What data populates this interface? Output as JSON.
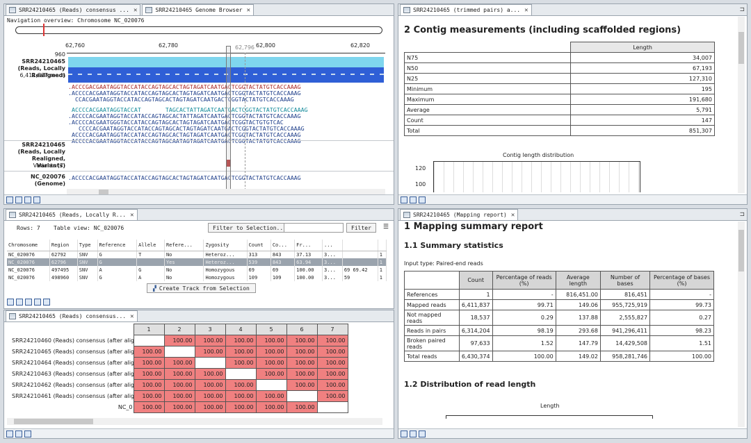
{
  "genome_browser": {
    "tabs": [
      {
        "label": "SRR24210465 (Reads) consensus ..."
      },
      {
        "label": "SRR24210465 Genome Browser"
      }
    ],
    "nav_label": "Navigation overview: Chromosome NC_020076",
    "ruler_ticks": [
      "62,760",
      "62,780",
      "62,800",
      "62,820"
    ],
    "cursor_position": "62,796",
    "tracks": [
      {
        "name": "SRR24210465 (Reads, Locally Realigned)",
        "max": "960",
        "reads": "6,411,837 reads"
      },
      {
        "name": "SRR24210465 (Reads, Locally Realigned, Variants)",
        "sub": "Variants (7)"
      },
      {
        "name": "NC_020076 (Genome)"
      }
    ],
    "read_lines": [
      ".ACCCGACGAATAGGTACCATACCAGTAGCACTAGTAGATCAATGACTCGGTACTATGTCACCAAAG",
      ".ACCCCACGAATAGGTACCATACCAGTAGCACTAGTAGATCAATGACTCGGTACTATGTCACCAAAG",
      "  CCACGAATAGGTACCATACCAGTAGCACTAGTAGATCAATGACTCGGTACTATGTCACCAAAG",
      "",
      " ACCCCACGAATAGGTACCAT       TAGCACTATTAGATCAATGACTCGGTACTATGTCACCAAAG",
      ".ACCCCACGAATAGGTACCATACCAGTAGCACTATTAGATCAATGACTCGGTACTATGTCACCAAAG",
      ".ACCCCACGAATGGGTACCATACCAGTAGCACTAGTAGATCAATGACTCGGTACTGTGTCAC",
      "   CCCCACGAATAGGTACCATACCAGTAGCACTAGTAGATCAATGACTCGGTACTATGTCACCAAAG",
      " ACCCCACGAATAGGTACCATACCAGTAGCACTAGTAGATCAATGACTCGGTACTATGTCACCAAAG",
      " ACCCCACGAATAGGTACCATACCAGTAGCAATAGTAGATCAATGACTCGGTACTATGTCACCAAAG"
    ],
    "genome_line": ".ACCCCACGAATAGGTACCATACCAGTAGCACTAGTAGATCAATGACTCGGTACTATGTCACCAAAG"
  },
  "trimmed_pairs": {
    "tab": "SRR24210465 (trimmed pairs) a...",
    "heading": "2 Contig measurements (including scaffolded regions)",
    "col_header": "Length",
    "rows": [
      {
        "label": "N75",
        "value": "34,007"
      },
      {
        "label": "N50",
        "value": "67,193"
      },
      {
        "label": "N25",
        "value": "127,310"
      },
      {
        "label": "Minimum",
        "value": "195"
      },
      {
        "label": "Maximum",
        "value": "191,680"
      },
      {
        "label": "Average",
        "value": "5,791"
      },
      {
        "label": "Count",
        "value": "147"
      },
      {
        "label": "Total",
        "value": "851,307"
      }
    ],
    "chart_title": "Contig length distribution",
    "y_ticks": [
      "120",
      "100"
    ]
  },
  "variant_table": {
    "tab": "SRR24210465 (Reads, Locally R...",
    "rows_label": "Rows: 7",
    "table_view_label": "Table view: NC_020076",
    "filter_to_selection": "Filter to Selection...",
    "filter_button": "Filter",
    "columns": [
      "Chromosome",
      "Region",
      "Type",
      "Reference",
      "Allele",
      "Refere...",
      "Zygosity",
      "Count",
      "Co...",
      "Fr...",
      "...",
      "",
      ""
    ],
    "rows": [
      [
        "NC_020076",
        "62792",
        "SNV",
        "G",
        "T",
        "No",
        "Heteroz...",
        "313",
        "843",
        "37.13",
        "3...",
        "",
        "1"
      ],
      [
        "NC_020076",
        "62796",
        "SNV",
        "G",
        "",
        "Yes",
        "Heteroz...",
        "539",
        "843",
        "63.94",
        "3...",
        "",
        "1"
      ],
      [
        "NC_020076",
        "497495",
        "SNV",
        "A",
        "G",
        "No",
        "Homozygous",
        "69",
        "69",
        "100.00",
        "3...",
        "69 69.42",
        "1"
      ],
      [
        "NC_020076",
        "498960",
        "SNV",
        "G",
        "A",
        "No",
        "Homozygous",
        "109",
        "109",
        "100.00",
        "3...",
        "59",
        "1"
      ]
    ],
    "create_track_button": "Create Track from Selection"
  },
  "consensus_matrix": {
    "tab": "SRR24210465 (Reads) consensus...",
    "columns": [
      "1",
      "2",
      "3",
      "4",
      "5",
      "6",
      "7"
    ],
    "rows": [
      {
        "label": "SRR24210460 (Reads) consensus (after align",
        "cells": [
          "",
          "100.00",
          "100.00",
          "100.00",
          "100.00",
          "100.00",
          "100.00"
        ]
      },
      {
        "label": "SRR24210465 (Reads) consensus (after align",
        "cells": [
          "100.00",
          "",
          "100.00",
          "100.00",
          "100.00",
          "100.00",
          "100.00"
        ]
      },
      {
        "label": "SRR24210464 (Reads) consensus (after align",
        "cells": [
          "100.00",
          "100.00",
          "",
          "100.00",
          "100.00",
          "100.00",
          "100.00"
        ]
      },
      {
        "label": "SRR24210463 (Reads) consensus (after align",
        "cells": [
          "100.00",
          "100.00",
          "100.00",
          "",
          "100.00",
          "100.00",
          "100.00"
        ]
      },
      {
        "label": "SRR24210462 (Reads) consensus (after align",
        "cells": [
          "100.00",
          "100.00",
          "100.00",
          "100.00",
          "",
          "100.00",
          "100.00"
        ]
      },
      {
        "label": "SRR24210461 (Reads) consensus (after align",
        "cells": [
          "100.00",
          "100.00",
          "100.00",
          "100.00",
          "100.00",
          "",
          "100.00"
        ]
      },
      {
        "label": "NC_0",
        "cells": [
          "100.00",
          "100.00",
          "100.00",
          "100.00",
          "100.00",
          "100.00",
          ""
        ]
      }
    ]
  },
  "mapping_report": {
    "tab": "SRR24210465 (Mapping report)",
    "heading": "1 Mapping summary report",
    "sub1": "1.1 Summary statistics",
    "input_type": "Input type: Paired-end reads",
    "columns": [
      "",
      "Count",
      "Percentage of reads (%)",
      "Average length",
      "Number of bases",
      "Percentage of bases (%)"
    ],
    "rows": [
      [
        "References",
        "1",
        "-",
        "816,451.00",
        "816,451",
        "-"
      ],
      [
        "Mapped reads",
        "6,411,837",
        "99.71",
        "149.06",
        "955,725,919",
        "99.73"
      ],
      [
        "Not mapped reads",
        "18,537",
        "0.29",
        "137.88",
        "2,555,827",
        "0.27"
      ],
      [
        "Reads in pairs",
        "6,314,204",
        "98.19",
        "293.68",
        "941,296,411",
        "98.23"
      ],
      [
        "Broken paired reads",
        "97,633",
        "1.52",
        "147.79",
        "14,429,508",
        "1.51"
      ],
      [
        "Total reads",
        "6,430,374",
        "100.00",
        "149.02",
        "958,281,746",
        "100.00"
      ]
    ],
    "sub2": "1.2 Distribution of read length",
    "length_label": "Length"
  }
}
